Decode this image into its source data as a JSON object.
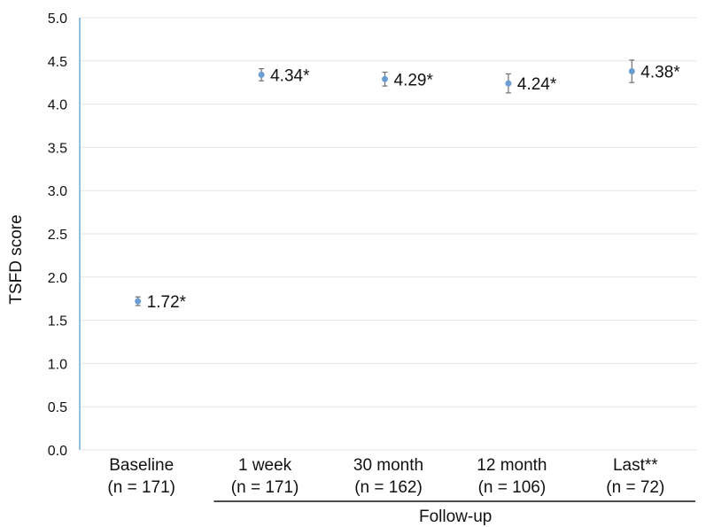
{
  "chart_data": {
    "type": "scatter",
    "ylabel": "TSFD score",
    "xlabel": "",
    "group_label": "Follow-up",
    "ylim": [
      0,
      5
    ],
    "yticks": [
      "0.0",
      "0.5",
      "1.0",
      "1.5",
      "2.0",
      "2.5",
      "3.0",
      "3.5",
      "4.0",
      "4.5",
      "5.0"
    ],
    "grid": true,
    "categories": [
      {
        "name": "Baseline",
        "n": "(n = 171)"
      },
      {
        "name": "1 week",
        "n": "(n = 171)"
      },
      {
        "name": "30 month",
        "n": "(n = 162)"
      },
      {
        "name": "12 month",
        "n": "(n = 106)"
      },
      {
        "name": "Last**",
        "n": "(n = 72)"
      }
    ],
    "series": [
      {
        "values": [
          1.72,
          4.34,
          4.29,
          4.24,
          4.38
        ],
        "error_low": [
          1.67,
          4.27,
          4.21,
          4.13,
          4.25
        ],
        "error_high": [
          1.77,
          4.41,
          4.37,
          4.35,
          4.51
        ],
        "labels": [
          "1.72*",
          "4.34*",
          "4.29*",
          "4.24*",
          "4.38*"
        ],
        "color": "#6a9ed3"
      }
    ],
    "axis_color": "#6aaed6",
    "grid_color": "#e6e6e6",
    "errorbar_color": "#707070"
  }
}
